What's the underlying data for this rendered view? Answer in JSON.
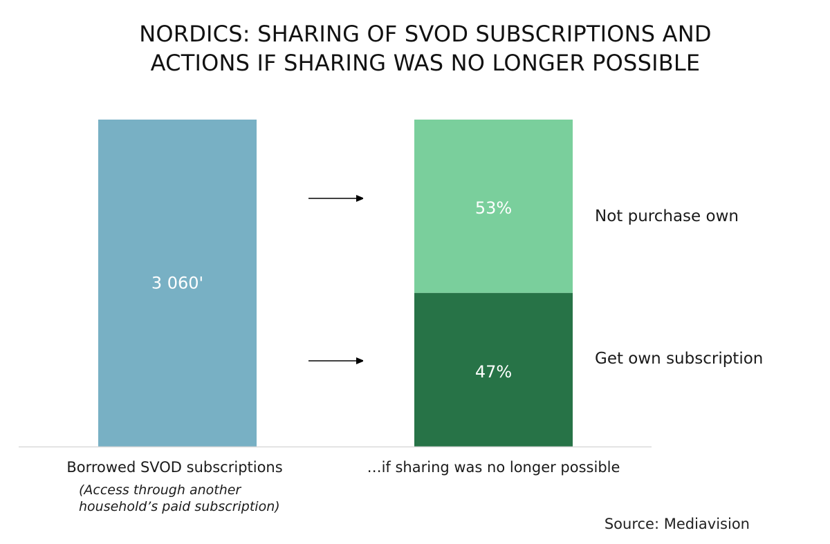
{
  "title_lines": [
    "NORDICS: SHARING OF SVOD SUBSCRIPTIONS AND",
    "ACTIONS IF SHARING WAS NO LONGER POSSIBLE"
  ],
  "source": "Source: Mediavision",
  "colors": {
    "borrowed": "#78b0c4",
    "not_purchase": "#7acf9c",
    "get_own": "#277347",
    "axis": "#d9d9d9",
    "text": "#1a1a1a",
    "bar_label": "#ffffff"
  },
  "chart_data": {
    "type": "bar",
    "title": "NORDICS: SHARING OF SVOD SUBSCRIPTIONS AND ACTIONS IF SHARING WAS NO LONGER POSSIBLE",
    "categories": [
      "Borrowed SVOD subscriptions",
      "…if sharing was no longer possible"
    ],
    "category_notes": [
      "(Access through another household’s paid subscription)",
      ""
    ],
    "note_lines": [
      "(Access through another",
      "household’s paid subscription)"
    ],
    "bars": [
      {
        "category": "Borrowed SVOD subscriptions",
        "segments": [
          {
            "name": "",
            "value": 3060,
            "label": "3 060'"
          }
        ]
      },
      {
        "category": "…if sharing was no longer possible",
        "segments": [
          {
            "name": "Get own subscription",
            "value": 47,
            "label": "47%"
          },
          {
            "name": "Not purchase own",
            "value": 53,
            "label": "53%"
          }
        ]
      }
    ],
    "stacked": true,
    "grid": false,
    "legend": "right of bars"
  }
}
